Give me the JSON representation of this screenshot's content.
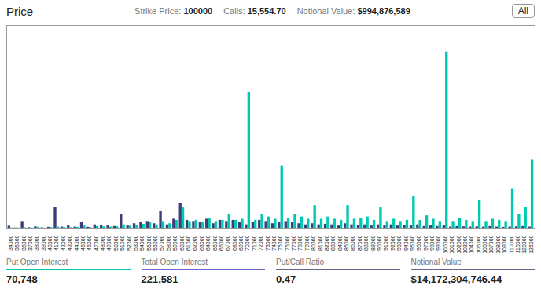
{
  "chart_data": {
    "type": "bar",
    "title": "Price",
    "categories": [
      "34000",
      "35000",
      "36000",
      "37000",
      "38000",
      "39000",
      "40000",
      "41000",
      "42000",
      "43000",
      "44000",
      "45000",
      "46000",
      "47000",
      "48000",
      "49000",
      "50000",
      "51000",
      "52000",
      "53000",
      "54000",
      "55000",
      "56000",
      "57000",
      "58000",
      "59000",
      "60000",
      "61000",
      "62000",
      "63000",
      "64000",
      "65000",
      "66000",
      "67000",
      "68000",
      "69000",
      "70000",
      "71000",
      "72000",
      "73000",
      "74000",
      "75000",
      "76000",
      "77000",
      "78000",
      "79000",
      "80000",
      "81000",
      "82000",
      "83000",
      "84000",
      "85000",
      "86000",
      "87000",
      "88000",
      "89000",
      "90000",
      "91000",
      "92000",
      "93000",
      "94000",
      "95000",
      "96000",
      "97000",
      "98000",
      "99000",
      "100000",
      "101000",
      "102000",
      "103000",
      "104000",
      "105000",
      "106000",
      "107000",
      "108000",
      "109000",
      "110000",
      "115000",
      "120000",
      "125000"
    ],
    "series": [
      {
        "color": "#3d3d7a",
        "values": [
          180,
          20,
          600,
          50,
          120,
          30,
          80,
          1800,
          100,
          200,
          100,
          500,
          80,
          300,
          250,
          200,
          150,
          1200,
          200,
          400,
          500,
          600,
          400,
          1500,
          300,
          800,
          2200,
          700,
          600,
          500,
          800,
          400,
          700,
          600,
          700,
          500,
          300,
          500,
          700,
          600,
          400,
          500,
          600,
          500,
          400,
          300,
          400,
          300,
          350,
          300,
          200,
          400,
          300,
          250,
          300,
          200,
          300,
          200,
          300,
          200,
          250,
          200,
          300,
          150,
          200,
          150,
          200,
          100,
          150,
          120,
          100,
          120,
          100,
          150,
          100,
          80,
          100,
          120,
          150,
          100
        ]
      },
      {
        "color": "#00c9b1",
        "values": [
          20,
          10,
          30,
          20,
          80,
          10,
          50,
          100,
          60,
          50,
          80,
          200,
          40,
          150,
          120,
          100,
          120,
          300,
          180,
          250,
          350,
          500,
          300,
          600,
          400,
          700,
          1800,
          600,
          700,
          500,
          900,
          600,
          700,
          1200,
          700,
          800,
          12000,
          700,
          1200,
          1000,
          800,
          5500,
          900,
          1200,
          1000,
          800,
          2000,
          800,
          1000,
          800,
          700,
          2000,
          800,
          900,
          1000,
          700,
          1800,
          600,
          800,
          600,
          700,
          2800,
          700,
          1100,
          800,
          600,
          15554,
          600,
          900,
          700,
          600,
          2500,
          600,
          800,
          700,
          600,
          3500,
          1200,
          1800,
          6000
        ]
      }
    ],
    "ylim": [
      0,
      17887.1
    ],
    "yticks": [],
    "tick_labels": "x",
    "annotations": [
      {
        "text": "All"
      },
      {
        "label": "Strike Price:",
        "value": "100000"
      },
      {
        "label": "Calls:",
        "value": "15,554.70"
      },
      {
        "label": "Notional Value:",
        "value": "$994,876,589"
      },
      {
        "label": "Put Open Interest",
        "value": "70,748",
        "color": "#00c9b1"
      },
      {
        "label": "Total Open Interest",
        "value": "221,581",
        "color": "#6666cc"
      },
      {
        "label": "Put/Call Ratio",
        "value": "0.47",
        "color": "#666688"
      },
      {
        "label": "Notional Value",
        "value": "$14,172,304,746.44",
        "color": "#666688"
      }
    ]
  }
}
